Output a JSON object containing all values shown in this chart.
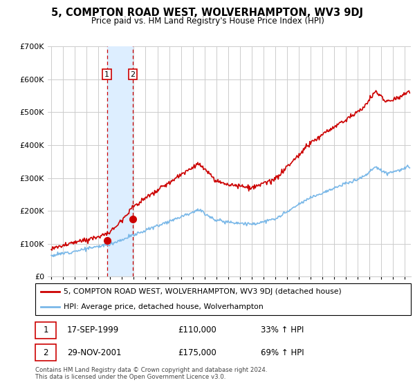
{
  "title": "5, COMPTON ROAD WEST, WOLVERHAMPTON, WV3 9DJ",
  "subtitle": "Price paid vs. HM Land Registry's House Price Index (HPI)",
  "legend_line1": "5, COMPTON ROAD WEST, WOLVERHAMPTON, WV3 9DJ (detached house)",
  "legend_line2": "HPI: Average price, detached house, Wolverhampton",
  "transaction1_date": "17-SEP-1999",
  "transaction1_price": "£110,000",
  "transaction1_hpi": "33% ↑ HPI",
  "transaction1_year": 1999.72,
  "transaction1_value": 110000,
  "transaction2_date": "29-NOV-2001",
  "transaction2_price": "£175,000",
  "transaction2_hpi": "69% ↑ HPI",
  "transaction2_year": 2001.91,
  "transaction2_value": 175000,
  "footnote": "Contains HM Land Registry data © Crown copyright and database right 2024.\nThis data is licensed under the Open Government Licence v3.0.",
  "hpi_color": "#7ab8e8",
  "price_color": "#cc0000",
  "shade_color": "#ddeeff",
  "dot_color": "#cc0000",
  "background_color": "#ffffff",
  "grid_color": "#cccccc",
  "ylim": [
    0,
    700000
  ],
  "yticks": [
    0,
    100000,
    200000,
    300000,
    400000,
    500000,
    600000,
    700000
  ],
  "xlim_start": 1994.7,
  "xlim_end": 2025.5,
  "xtick_years": [
    1995,
    1996,
    1997,
    1998,
    1999,
    2000,
    2001,
    2002,
    2003,
    2004,
    2005,
    2006,
    2007,
    2008,
    2009,
    2010,
    2011,
    2012,
    2013,
    2014,
    2015,
    2016,
    2017,
    2018,
    2019,
    2020,
    2021,
    2022,
    2023,
    2024,
    2025
  ]
}
